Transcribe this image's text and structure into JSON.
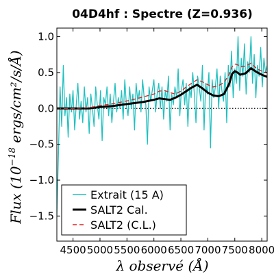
{
  "chart_data": {
    "type": "line",
    "title": "04D4hf : Spectre (Z=0.936)",
    "xlabel": "λ observé (Å)",
    "ylabel": "Flux (10^-18 ergs/cm²/s/Å)",
    "ylabel_parts": {
      "main": "Flux (10",
      "exp": "−18",
      "units": " ergs/cm²/s/Å)"
    },
    "xlim": [
      4200,
      8100
    ],
    "ylim": [
      -1.85,
      1.12
    ],
    "x_ticks": [
      4500,
      5000,
      5500,
      6000,
      6500,
      7000,
      7500,
      8000
    ],
    "x_tick_labels": [
      "4500",
      "5000",
      "5500",
      "6000",
      "6500",
      "7000",
      "7500",
      "8000"
    ],
    "y_ticks": [
      1.0,
      0.5,
      0.0,
      -0.5,
      -1.0,
      -1.5
    ],
    "y_tick_labels": [
      "1.0",
      "0.5",
      "0.0",
      "−0.5",
      "−1.0",
      "−1.5"
    ],
    "zero_line": true,
    "grid": false,
    "legend_position": "lower-left",
    "series": [
      {
        "name": "Extrait (15 A)",
        "color": "#20c0c0",
        "style": "solid-thin",
        "x": [
          4200,
          4230,
          4260,
          4290,
          4320,
          4350,
          4380,
          4410,
          4440,
          4470,
          4500,
          4530,
          4560,
          4590,
          4620,
          4650,
          4680,
          4710,
          4740,
          4770,
          4800,
          4830,
          4860,
          4890,
          4920,
          4950,
          4980,
          5010,
          5040,
          5070,
          5100,
          5130,
          5160,
          5190,
          5220,
          5250,
          5280,
          5310,
          5340,
          5370,
          5400,
          5430,
          5460,
          5490,
          5520,
          5550,
          5580,
          5610,
          5640,
          5670,
          5700,
          5730,
          5760,
          5790,
          5820,
          5850,
          5880,
          5910,
          5940,
          5970,
          6000,
          6030,
          6060,
          6090,
          6120,
          6150,
          6180,
          6210,
          6240,
          6270,
          6300,
          6330,
          6360,
          6390,
          6420,
          6450,
          6480,
          6510,
          6540,
          6570,
          6600,
          6630,
          6660,
          6690,
          6720,
          6750,
          6780,
          6810,
          6840,
          6870,
          6900,
          6930,
          6960,
          6990,
          7020,
          7050,
          7080,
          7110,
          7140,
          7170,
          7200,
          7230,
          7260,
          7290,
          7320,
          7350,
          7380,
          7410,
          7440,
          7470,
          7500,
          7530,
          7560,
          7590,
          7620,
          7650,
          7680,
          7710,
          7740,
          7770,
          7800,
          7830,
          7860,
          7890,
          7920,
          7950,
          7980,
          8010,
          8040,
          8070,
          8100
        ],
        "y": [
          -1.5,
          -0.6,
          0.3,
          -0.25,
          0.6,
          -0.1,
          0.15,
          -0.4,
          0.2,
          -0.05,
          0.25,
          -0.3,
          0.05,
          0.35,
          -0.15,
          0.1,
          -0.2,
          0.3,
          -0.05,
          0.15,
          -0.35,
          0.2,
          0.0,
          -0.25,
          0.3,
          0.05,
          -0.15,
          0.25,
          -0.45,
          0.15,
          0.05,
          0.3,
          -0.1,
          0.2,
          -0.2,
          0.1,
          0.35,
          -0.05,
          0.15,
          0.0,
          0.25,
          -0.15,
          0.4,
          0.05,
          -0.1,
          0.3,
          0.0,
          0.2,
          -0.3,
          0.35,
          0.1,
          0.25,
          -0.05,
          0.4,
          0.15,
          0.05,
          -0.5,
          0.3,
          0.1,
          0.25,
          0.4,
          -0.05,
          0.2,
          0.35,
          0.0,
          0.3,
          -0.15,
          0.25,
          0.1,
          0.45,
          -0.3,
          0.2,
          0.05,
          0.3,
          0.15,
          0.55,
          -0.1,
          0.25,
          0.4,
          0.05,
          0.35,
          -0.25,
          0.3,
          0.15,
          0.5,
          0.2,
          -0.2,
          0.45,
          0.3,
          0.1,
          0.6,
          -0.3,
          0.35,
          0.2,
          0.5,
          -0.55,
          0.4,
          0.15,
          0.3,
          0.55,
          0.0,
          0.45,
          0.25,
          0.1,
          0.5,
          -0.2,
          0.6,
          0.3,
          0.8,
          0.15,
          0.55,
          0.35,
          1.0,
          0.25,
          0.7,
          0.45,
          0.9,
          0.2,
          0.65,
          0.5,
          1.0,
          0.35,
          0.75,
          0.15,
          0.6,
          0.45,
          0.85,
          0.3,
          0.7,
          0.5,
          0.6
        ]
      },
      {
        "name": "SALT2 Cal.",
        "color": "#000000",
        "style": "solid-thick",
        "x": [
          4200,
          4500,
          4800,
          5000,
          5200,
          5400,
          5600,
          5800,
          6000,
          6100,
          6200,
          6300,
          6400,
          6500,
          6600,
          6700,
          6800,
          6900,
          7000,
          7100,
          7200,
          7300,
          7400,
          7450,
          7500,
          7550,
          7600,
          7700,
          7800,
          7900,
          8000,
          8100
        ],
        "y": [
          0.0,
          0.0,
          0.0,
          0.02,
          0.03,
          0.05,
          0.07,
          0.09,
          0.12,
          0.14,
          0.13,
          0.12,
          0.15,
          0.19,
          0.24,
          0.29,
          0.33,
          0.28,
          0.22,
          0.18,
          0.17,
          0.2,
          0.35,
          0.48,
          0.52,
          0.5,
          0.47,
          0.49,
          0.56,
          0.51,
          0.47,
          0.44
        ]
      },
      {
        "name": "SALT2 (C.L.)",
        "color": "#dd2222",
        "style": "dashed",
        "x": [
          4200,
          4500,
          4800,
          5000,
          5200,
          5400,
          5600,
          5800,
          6000,
          6100,
          6200,
          6300,
          6400,
          6500,
          6600,
          6700,
          6800,
          6900,
          7000,
          7100,
          7200,
          7300,
          7400,
          7450,
          7500,
          7550,
          7600,
          7700,
          7800,
          7900,
          8000,
          8100
        ],
        "y": [
          0.0,
          0.0,
          0.01,
          0.04,
          0.06,
          0.09,
          0.12,
          0.16,
          0.2,
          0.24,
          0.25,
          0.22,
          0.2,
          0.24,
          0.3,
          0.35,
          0.4,
          0.37,
          0.33,
          0.3,
          0.32,
          0.36,
          0.48,
          0.58,
          0.62,
          0.61,
          0.58,
          0.59,
          0.63,
          0.56,
          0.52,
          0.5
        ]
      }
    ]
  }
}
